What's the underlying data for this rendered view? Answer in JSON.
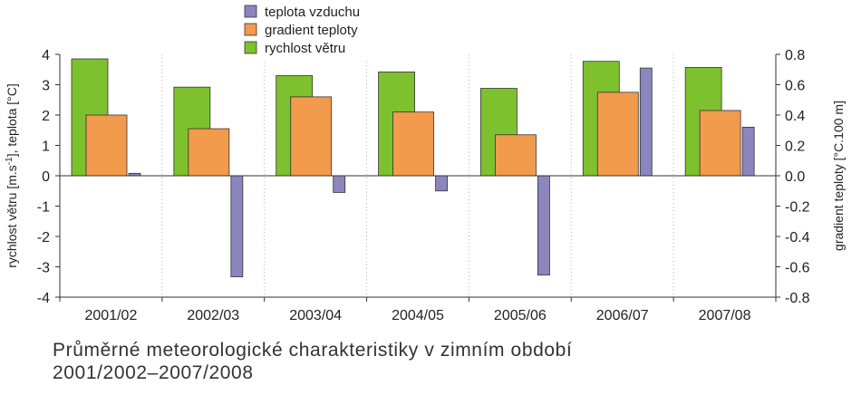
{
  "caption": {
    "line1": "Průměrné meteorologické charakteristiky v zimním období",
    "line2": "2001/2002–2007/2008"
  },
  "chart_data": {
    "type": "bar",
    "categories": [
      "2001/02",
      "2002/03",
      "2003/04",
      "2004/05",
      "2005/06",
      "2006/07",
      "2007/08"
    ],
    "series": [
      {
        "name": "rychlost větru",
        "axis": "left",
        "color": "#7dc12e",
        "values": [
          3.85,
          2.92,
          3.3,
          3.42,
          2.88,
          3.77,
          3.57
        ]
      },
      {
        "name": "gradient teploty",
        "axis": "right",
        "color": "#f29b4c",
        "values": [
          0.4,
          0.31,
          0.52,
          0.42,
          0.27,
          0.55,
          0.43
        ]
      },
      {
        "name": "teplota vzduchu",
        "axis": "left",
        "color": "#8b86bd",
        "values": [
          0.08,
          -3.33,
          -0.55,
          -0.5,
          -3.27,
          3.55,
          1.6
        ]
      }
    ],
    "legend_order": [
      "teplota vzduchu",
      "gradient teploty",
      "rychlost větru"
    ],
    "legend_position": "top-center",
    "ylabel": "rychlost větru [m.s-1], teplota [°C]",
    "ylabel_left_parts": {
      "before": "rychlost větru [m.s",
      "sup": "-1",
      "after": "], teplota [°C]"
    },
    "y2label": "gradient teploty [°C.100 m]",
    "ylim": [
      -4,
      4
    ],
    "y2lim": [
      -0.8,
      0.8
    ],
    "yticks": [
      -4,
      -3,
      -2,
      -1,
      0,
      1,
      2,
      3,
      4
    ],
    "yticks_labels": [
      "-4",
      "-3",
      "-2",
      "-1",
      "0",
      "1",
      "2",
      "3",
      "4"
    ],
    "y2ticks": [
      -0.8,
      -0.6,
      -0.4,
      -0.2,
      0,
      0.2,
      0.4,
      0.6,
      0.8
    ],
    "y2ticks_labels": [
      "-0.8",
      "-0.6",
      "-0.4",
      "-0.2",
      "0.0",
      "0.2",
      "0.4",
      "0.6",
      "0.8"
    ],
    "grid": "vertical dotted"
  }
}
